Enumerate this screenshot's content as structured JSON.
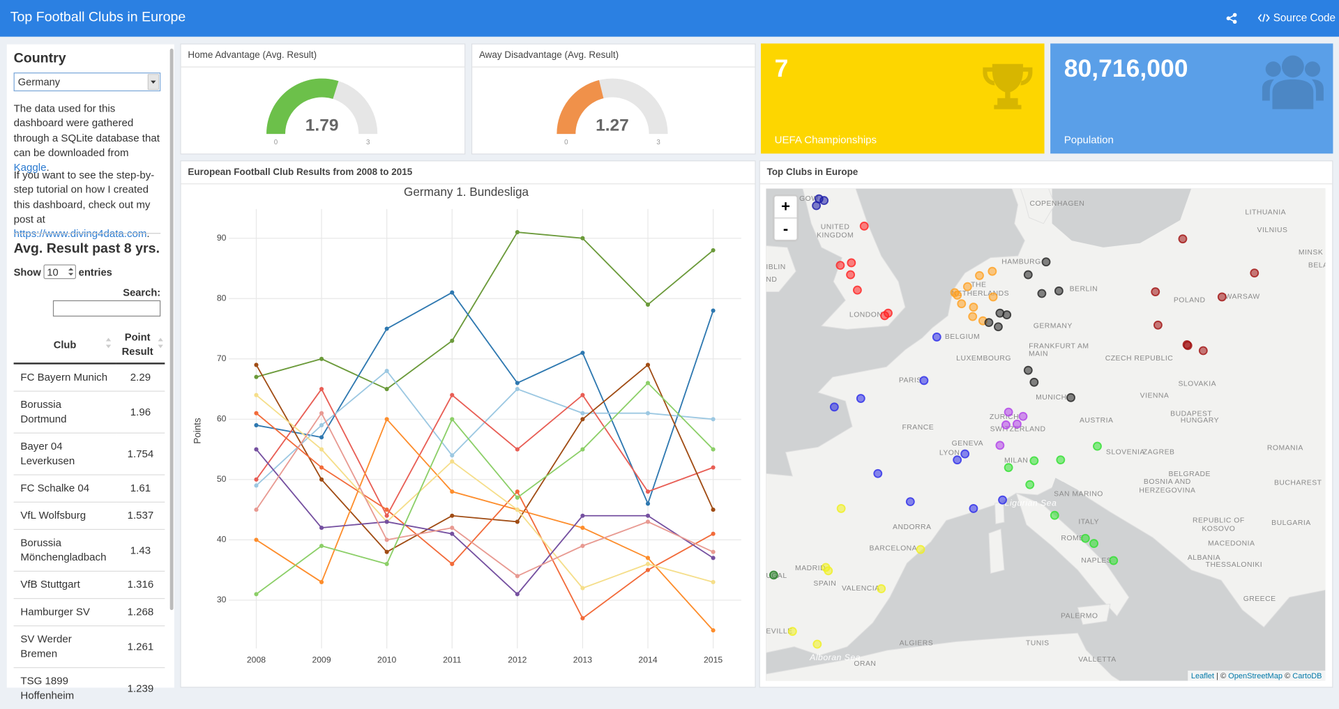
{
  "header": {
    "title": "Top Football Clubs in Europe",
    "source_code": "Source Code"
  },
  "sidebar": {
    "country_label": "Country",
    "country": "Germany",
    "intro": {
      "before": "The data used for this dashboard were gathered through a SQLite database that can be downloaded from ",
      "link": "Kaggle",
      "after": "."
    },
    "tutorial": {
      "before": "If you want to see the step-by-step tutorial on how I created this dashboard, check out my post at ",
      "link": "https://www.diving4data.com",
      "after": "."
    },
    "table_title": "Avg. Result past 8 yrs.",
    "show": "Show",
    "page_length": "10",
    "entries": "entries",
    "search": "Search:"
  },
  "table": {
    "headers": [
      "Club",
      "Point Result"
    ],
    "rows": [
      [
        "FC Bayern Munich",
        2.29
      ],
      [
        "Borussia Dortmund",
        1.96
      ],
      [
        "Bayer 04 Leverkusen",
        1.754
      ],
      [
        "FC Schalke 04",
        1.61
      ],
      [
        "VfL Wolfsburg",
        1.537
      ],
      [
        "Borussia Mönchengladbach",
        1.43
      ],
      [
        "VfB Stuttgart",
        1.316
      ],
      [
        "Hamburger SV",
        1.268
      ],
      [
        "SV Werder Bremen",
        1.261
      ],
      [
        "TSG 1899 Hoffenheim",
        1.239
      ]
    ]
  },
  "gauges": [
    {
      "title": "Home Advantage (Avg. Result)",
      "value": 1.79,
      "min": 0,
      "max": 3,
      "color": "#6cc04a"
    },
    {
      "title": "Away Disadvantage (Avg. Result)",
      "value": 1.27,
      "min": 0,
      "max": 3,
      "color": "#f0914a"
    }
  ],
  "value_boxes": [
    {
      "value": "7",
      "label": "UEFA Championships",
      "color": "#fdd600"
    },
    {
      "value": "80,716,000",
      "label": "Population",
      "color": "#5a9fe8"
    }
  ],
  "chart_panel": {
    "title": "European Football Club Results from 2008 to 2015"
  },
  "chart_data": {
    "type": "line",
    "title": "Germany 1. Bundesliga",
    "y_label": "Points",
    "x": [
      2008,
      2009,
      2010,
      2011,
      2012,
      2013,
      2014,
      2015
    ],
    "xlim": [
      2007.58,
      2015.43
    ],
    "xticks": [
      2008,
      2009,
      2010,
      2011,
      2012,
      2013,
      2014,
      2015
    ],
    "ylim": [
      22,
      93
    ],
    "yticks": [
      30,
      40,
      50,
      60,
      70,
      80,
      90
    ],
    "grid": true,
    "series": [
      {
        "color": "#6b9a3a",
        "values": [
          67,
          70,
          65,
          73,
          91,
          90,
          79,
          88
        ]
      },
      {
        "color": "#2e78b0",
        "values": [
          59,
          57,
          75,
          81,
          66,
          71,
          46,
          78
        ]
      },
      {
        "color": "#9cc8e2",
        "values": [
          49,
          59,
          68,
          54,
          65,
          61,
          61,
          60
        ]
      },
      {
        "color": "#e85e55",
        "values": [
          50,
          65,
          44,
          64,
          55,
          64,
          48,
          52
        ]
      },
      {
        "color": "#a04c14",
        "values": [
          69,
          50,
          38,
          44,
          43,
          60,
          69,
          45
        ]
      },
      {
        "color": "#fd8d2c",
        "values": [
          40,
          33,
          60,
          48,
          45,
          42,
          37,
          25
        ]
      },
      {
        "color": "#f26b3a",
        "values": [
          61,
          52,
          45,
          36,
          48,
          27,
          35,
          41
        ]
      },
      {
        "color": "#f5de8a",
        "values": [
          64,
          55,
          43,
          53,
          45,
          32,
          36,
          33
        ]
      },
      {
        "color": "#7550a0",
        "values": [
          55,
          42,
          43,
          41,
          31,
          44,
          44,
          37
        ]
      },
      {
        "color": "#e89a92",
        "values": [
          45,
          61,
          40,
          42,
          34,
          39,
          43,
          38
        ]
      },
      {
        "color": "#8ccf68",
        "values": [
          31,
          39,
          36,
          60,
          47,
          55,
          66,
          55
        ]
      }
    ]
  },
  "map": {
    "title": "Top Clubs in Europe",
    "zoom_in": "+",
    "zoom_out": "-",
    "attribution": [
      "Leaflet",
      " | © ",
      "OpenStreetMap",
      " © ",
      "CartoDB"
    ],
    "labels": [
      "GOW",
      "COPENHAGEN",
      "LITHUANIA",
      "VILNIUS",
      "UNITED",
      "KINGDOM",
      "HAMBURG",
      "MINSK",
      "BELA",
      "BERLIN",
      "POLAND",
      "WARSAW",
      "IBLIN",
      "ND",
      "THE",
      "NETHERLANDS",
      "LONDON",
      "GERMANY",
      "BELGIUM",
      "FRANKFURT AM",
      "MAIN",
      "LUXEMBOURG",
      "CZECH REPUBLIC",
      "PARIS",
      "SLOVAKIA",
      "VIENNA",
      "MUNICH",
      "BUDAPEST",
      "HUNGARY",
      "AUSTRIA",
      "FRANCE",
      "ZURICH",
      "SWITZERLAND",
      "GENEVA",
      "LYON",
      "SLOVENIA",
      "ZAGREB",
      "ROMANIA",
      "MILAN",
      "BELGRADE",
      "BOSNIA AND",
      "HERZEGOVINA",
      "BUCHAREST",
      "SAN MARINO",
      "Ligurian Sea",
      "ANDORRA",
      "ITALY",
      "BULGARIA",
      "REPUBLIC OF",
      "KOSOVO",
      "BARCELONA",
      "ROME",
      "MACEDONIA",
      "MADRID",
      "NAPLES",
      "ALBANIA",
      "THESSALONIKI",
      "UGAL",
      "SPAIN",
      "VALENCIA",
      "GREECE",
      "PALERMO",
      "EVILLE",
      "ALGIERS",
      "TUNIS",
      "VALLETTA",
      "Alboran Sea",
      "ORAN"
    ]
  }
}
